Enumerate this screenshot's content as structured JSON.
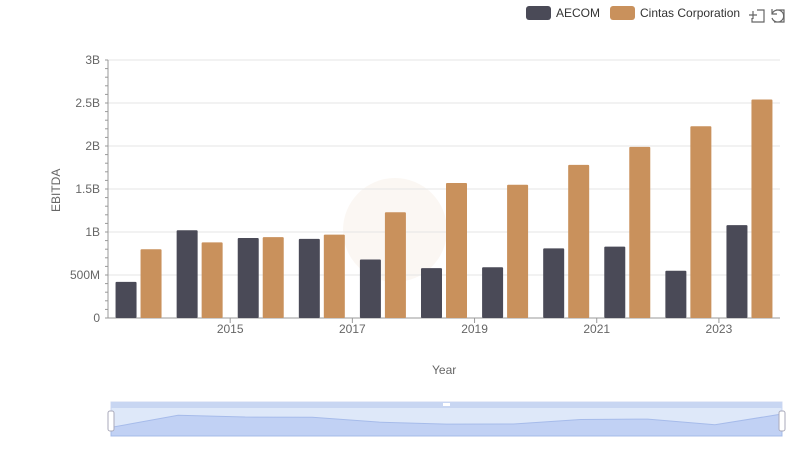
{
  "legend": [
    {
      "label": "AECOM",
      "color": "#4a4a57"
    },
    {
      "label": "Cintas Corporation",
      "color": "#c9915c"
    }
  ],
  "toolbox": {
    "zoom_icon": "zoom-select-icon",
    "restore_icon": "restore-icon"
  },
  "chart_data": {
    "type": "bar",
    "xlabel": "Year",
    "ylabel": "EBITDA",
    "ylim": [
      0,
      3000000000
    ],
    "y_tick_labels": [
      "0",
      "500M",
      "1B",
      "1.5B",
      "2B",
      "2.5B",
      "3B"
    ],
    "y_tick_values": [
      0,
      500000000,
      1000000000,
      1500000000,
      2000000000,
      2500000000,
      3000000000
    ],
    "categories": [
      "2014",
      "2015",
      "2016",
      "2017",
      "2018",
      "2019",
      "2020",
      "2021",
      "2022",
      "2023",
      "2024"
    ],
    "x_tick_labels_shown": [
      "2015",
      "2017",
      "2019",
      "2021",
      "2023"
    ],
    "series": [
      {
        "name": "AECOM",
        "color": "#4a4a57",
        "values": [
          420000000,
          1020000000,
          930000000,
          920000000,
          680000000,
          580000000,
          590000000,
          810000000,
          830000000,
          550000000,
          1080000000
        ]
      },
      {
        "name": "Cintas Corporation",
        "color": "#c9915c",
        "values": [
          800000000,
          880000000,
          940000000,
          970000000,
          1230000000,
          1570000000,
          1550000000,
          1780000000,
          1990000000,
          2230000000,
          2540000000
        ]
      }
    ],
    "grid": true,
    "legend_position": "top-right",
    "data_zoom": {
      "range_percent": [
        0,
        100
      ]
    }
  }
}
